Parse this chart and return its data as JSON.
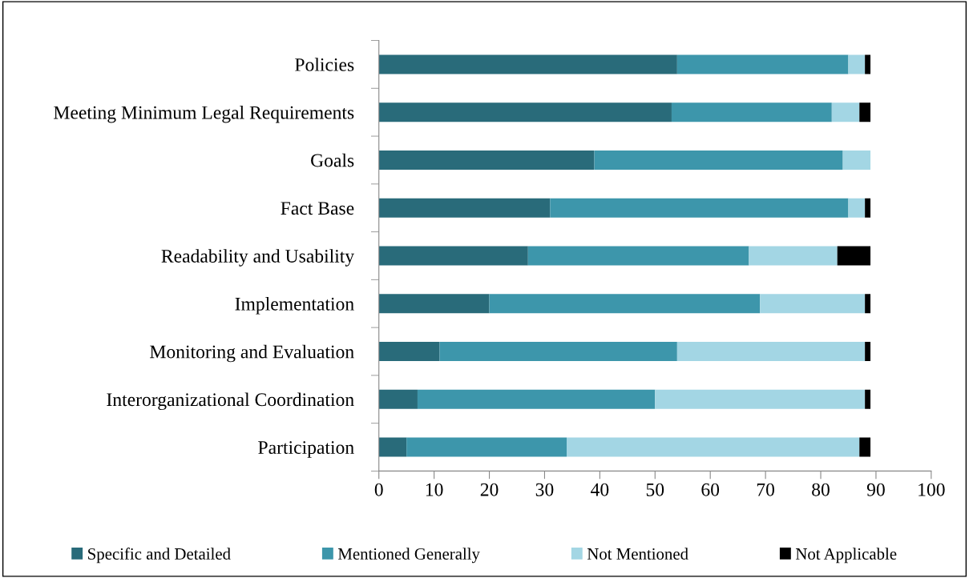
{
  "chart_data": {
    "type": "bar",
    "orientation": "horizontal",
    "stacked": true,
    "categories": [
      "Policies",
      "Meeting Minimum Legal Requirements",
      "Goals",
      "Fact Base",
      "Readability and Usability",
      "Implementation",
      "Monitoring and Evaluation",
      "Interorganizational Coordination",
      "Participation"
    ],
    "series": [
      {
        "name": "Specific and Detailed",
        "color": "#296b7a",
        "values": [
          54,
          53,
          39,
          31,
          27,
          20,
          11,
          7,
          5
        ]
      },
      {
        "name": "Mentioned Generally",
        "color": "#3d96ab",
        "values": [
          31,
          29,
          45,
          54,
          40,
          49,
          43,
          43,
          29
        ]
      },
      {
        "name": "Not Mentioned",
        "color": "#a3d6e4",
        "values": [
          3,
          5,
          5,
          3,
          16,
          19,
          34,
          38,
          53
        ]
      },
      {
        "name": "Not Applicable",
        "color": "#000000",
        "values": [
          1,
          2,
          0,
          1,
          6,
          1,
          1,
          1,
          2
        ]
      }
    ],
    "xlim": [
      0,
      100
    ],
    "xticks": [
      0,
      10,
      20,
      30,
      40,
      50,
      60,
      70,
      80,
      90,
      100
    ],
    "grid": false,
    "legend": "bottom"
  }
}
